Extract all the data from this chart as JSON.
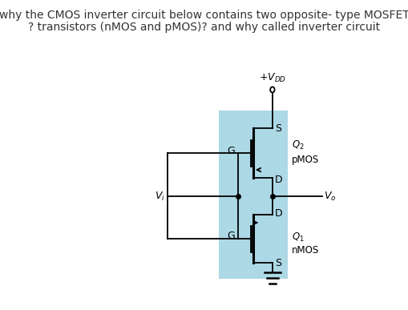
{
  "title_line1": "why the CMOS inverter circuit below contains two opposite- type MOSFET",
  "title_line2": "? transistors (nMOS and pMOS)? and why called inverter circuit",
  "title_fontsize": 10.0,
  "bg_color": "#ffffff",
  "highlight_color": "#add8e6",
  "line_color": "#000000",
  "text_color": "#333333",
  "vdd_text": "$+V_{DD}$",
  "vi_text": "$V_i$",
  "vo_text": "$V_o$",
  "q2_text": "$Q_2$",
  "q2_type": "pMOS",
  "q1_text": "$Q_1$",
  "q1_type": "nMOS",
  "g_label": "G",
  "s_label": "S",
  "d_label": "D",
  "label_fontsize": 9,
  "subscript_fontsize": 8.5
}
